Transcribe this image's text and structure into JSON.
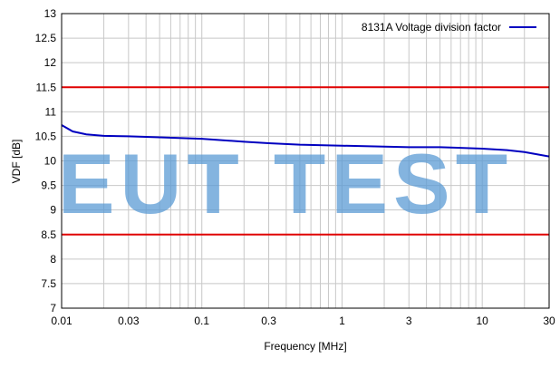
{
  "chart_data": {
    "type": "line",
    "title": "",
    "xlabel": "Frequency [MHz]",
    "ylabel": "VDF [dB]",
    "xscale": "log",
    "xlim": [
      0.01,
      30
    ],
    "ylim": [
      7,
      13
    ],
    "grid": true,
    "legend_position": "top-right",
    "x_ticks": [
      "0.01",
      "0.03",
      "0.1",
      "0.3",
      "1",
      "3",
      "10",
      "30"
    ],
    "y_ticks": [
      "7",
      "7.5",
      "8",
      "8.5",
      "9",
      "9.5",
      "10",
      "10.5",
      "11",
      "11.5",
      "12",
      "12.5",
      "13"
    ],
    "series": [
      {
        "name": "8131A Voltage division factor",
        "color": "#0000c0",
        "x": [
          0.01,
          0.012,
          0.015,
          0.02,
          0.03,
          0.05,
          0.1,
          0.2,
          0.3,
          0.5,
          1,
          2,
          3,
          5,
          10,
          15,
          20,
          30
        ],
        "y": [
          10.73,
          10.6,
          10.54,
          10.51,
          10.5,
          10.48,
          10.45,
          10.39,
          10.36,
          10.33,
          10.31,
          10.29,
          10.28,
          10.28,
          10.25,
          10.22,
          10.18,
          10.09
        ]
      }
    ],
    "limit_lines": [
      {
        "y": 11.5,
        "color": "#e00000"
      },
      {
        "y": 8.5,
        "color": "#e00000"
      }
    ]
  },
  "watermark": {
    "text": "EUT TEST",
    "color": "#5b9bd5"
  }
}
